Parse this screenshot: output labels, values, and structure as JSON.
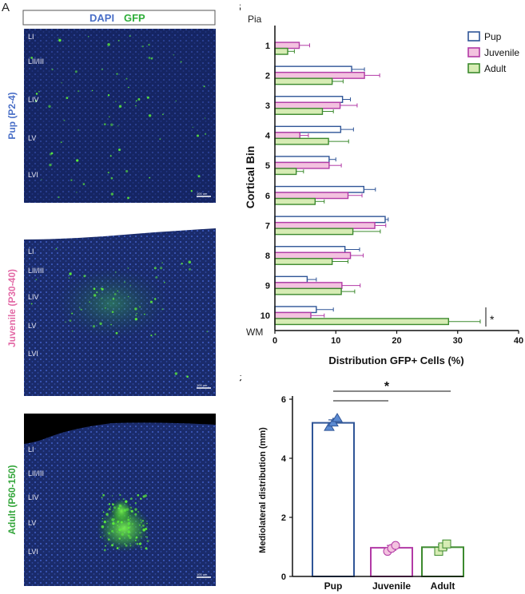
{
  "figure": {
    "panel_a": "A",
    "panel_b": "B",
    "panel_c": "C",
    "stain_dapi": "DAPI",
    "stain_gfp": "GFP",
    "layers": [
      "LI",
      "LII/III",
      "LIV",
      "LV",
      "LVI"
    ],
    "scale_bar": "100 um",
    "images": [
      {
        "label": "Pup (P2-4)",
        "color": "#4a6fc7"
      },
      {
        "label": "Juvenile (P30-40)",
        "color": "#e36aa6"
      },
      {
        "label": "Adult (P60-150)",
        "color": "#35a63c"
      }
    ],
    "colors": {
      "pup": "#2f5597",
      "juvenile": "#b23aa6",
      "adult": "#3c8a2e",
      "pup_fill": "#ffffff",
      "juvenile_fill": "#f3c2df",
      "adult_fill": "#d7ecb4"
    }
  },
  "chart_data": [
    {
      "type": "bar",
      "orientation": "horizontal",
      "categories": [
        "1",
        "2",
        "3",
        "4",
        "5",
        "6",
        "7",
        "8",
        "9",
        "10"
      ],
      "top_label": "Pia",
      "bottom_label": "WM",
      "xlabel": "Distribution GFP+ Cells (%)",
      "ylabel": "Cortical Bin",
      "xlim": [
        0,
        40
      ],
      "xticks": [
        "0",
        "10",
        "20",
        "30",
        "40"
      ],
      "legend": "top-right",
      "series": [
        {
          "name": "Pup",
          "values": [
            0,
            12.6,
            11.1,
            10.8,
            8.9,
            14.6,
            18.1,
            11.5,
            5.3,
            6.8
          ],
          "errors": [
            0,
            2.1,
            1.3,
            2.1,
            1.1,
            1.9,
            0.5,
            2.4,
            1.5,
            2.8
          ]
        },
        {
          "name": "Juvenile",
          "values": [
            4.0,
            14.7,
            10.7,
            4.1,
            8.9,
            12.0,
            16.4,
            12.4,
            11.0,
            5.9
          ],
          "errors": [
            1.7,
            2.5,
            2.8,
            1.4,
            2.0,
            2.3,
            1.8,
            2.1,
            3.0,
            2.2
          ]
        },
        {
          "name": "Adult",
          "values": [
            2.1,
            9.4,
            7.8,
            8.8,
            3.5,
            6.6,
            12.8,
            9.4,
            10.9,
            28.5
          ],
          "errors": [
            1.1,
            1.8,
            1.8,
            3.3,
            1.2,
            1.5,
            4.5,
            2.6,
            2.2,
            5.2
          ]
        }
      ],
      "annotation": "*"
    },
    {
      "type": "bar",
      "categories": [
        "Pup",
        "Juvenile",
        "Adult"
      ],
      "values": [
        5.2,
        0.97,
        0.99
      ],
      "errors": [
        0.1,
        0.08,
        0.08
      ],
      "points": [
        [
          5.05,
          5.2,
          5.35
        ],
        [
          0.85,
          0.95,
          1.05
        ],
        [
          0.85,
          1.0,
          1.1
        ]
      ],
      "ylabel": "Mediolateral distribution (mm)",
      "xlabel": "",
      "ylim": [
        0,
        6
      ],
      "yticks": [
        "0",
        "2",
        "4",
        "6"
      ],
      "annotation": "*"
    }
  ]
}
